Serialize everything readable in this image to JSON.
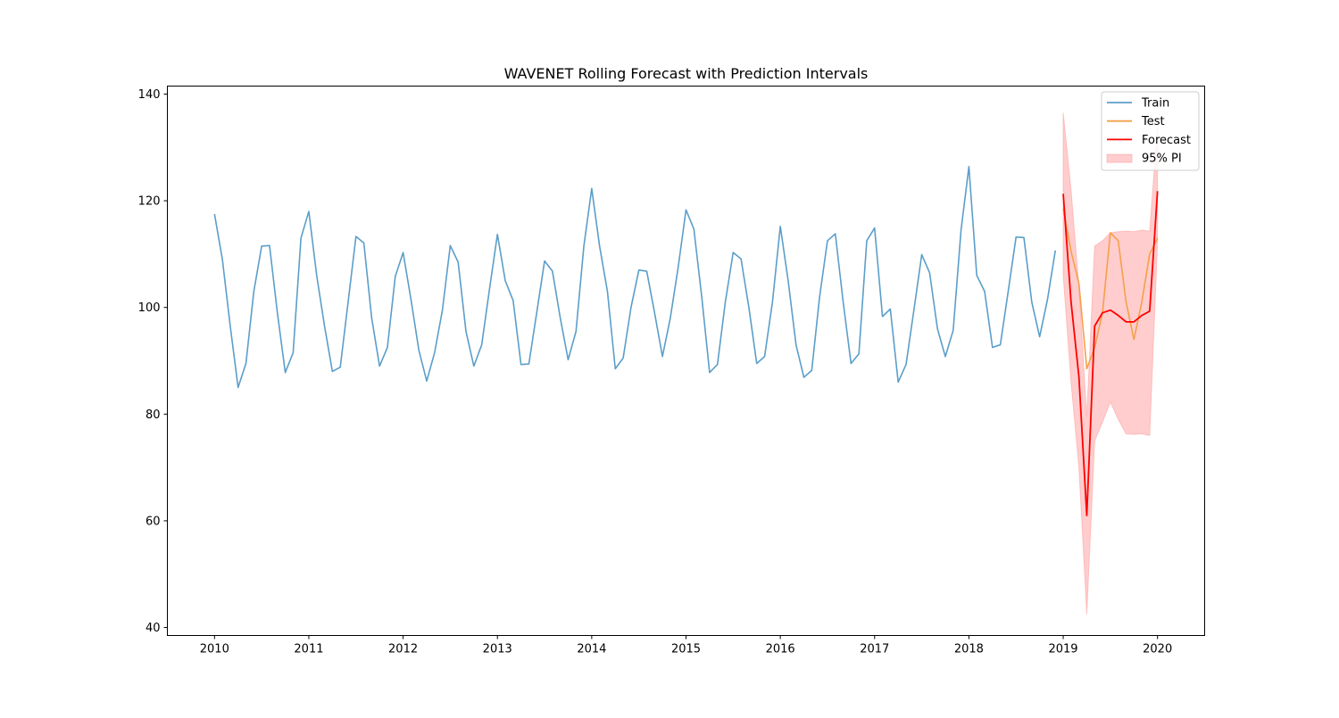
{
  "chart_data": {
    "type": "line",
    "title": "WAVENET Rolling Forecast with Prediction Intervals",
    "xlabel": "",
    "ylabel": "",
    "xlim": [
      2009.5,
      2020.5
    ],
    "ylim": [
      38.5,
      141.5
    ],
    "x_ticks": [
      2010,
      2011,
      2012,
      2013,
      2014,
      2015,
      2016,
      2017,
      2018,
      2019,
      2020
    ],
    "x_tick_labels": [
      "2010",
      "2011",
      "2012",
      "2013",
      "2014",
      "2015",
      "2016",
      "2017",
      "2018",
      "2019",
      "2020"
    ],
    "y_ticks": [
      40,
      60,
      80,
      100,
      120,
      140
    ],
    "y_tick_labels": [
      "40",
      "60",
      "80",
      "100",
      "120",
      "140"
    ],
    "grid": false,
    "legend_position": "top-right",
    "series": [
      {
        "name": "Train",
        "color": "#5b9ec9",
        "x_start": "2010-01",
        "frequency": "monthly",
        "values": [
          117.5,
          109.0,
          96.5,
          85.0,
          89.5,
          103.0,
          111.5,
          111.6,
          99.0,
          87.8,
          91.5,
          113.0,
          118.0,
          106.0,
          96.5,
          88.0,
          88.8,
          101.0,
          113.3,
          112.1,
          98.0,
          89.0,
          92.5,
          105.8,
          110.3,
          101.5,
          92.0,
          86.2,
          91.5,
          99.5,
          111.6,
          108.5,
          95.5,
          89.0,
          93.0,
          103.5,
          113.7,
          105.0,
          101.3,
          89.3,
          89.4,
          99.0,
          108.7,
          106.8,
          98.0,
          90.2,
          95.5,
          111.5,
          122.3,
          111.5,
          103.0,
          88.5,
          90.5,
          100.0,
          107.0,
          106.8,
          99.0,
          90.8,
          98.0,
          107.5,
          118.3,
          114.7,
          102.0,
          87.8,
          89.3,
          101.0,
          110.3,
          109.1,
          100.0,
          89.5,
          90.8,
          101.0,
          115.2,
          105.0,
          93.0,
          86.9,
          88.2,
          102.0,
          112.5,
          113.8,
          101.0,
          89.5,
          91.3,
          112.5,
          114.9,
          98.3,
          99.7,
          86.0,
          89.3,
          99.5,
          109.9,
          106.5,
          96.0,
          90.8,
          95.7,
          114.5,
          126.4,
          106.0,
          103.0,
          92.5,
          93.0,
          103.0,
          113.2,
          113.1,
          101.0,
          94.5,
          101.5,
          110.7
        ]
      },
      {
        "name": "Test",
        "color": "#f5a04a",
        "x_start": "2019-01",
        "frequency": "monthly",
        "values": [
          118.5,
          110.5,
          104.5,
          88.5,
          92.5,
          99.0,
          114.0,
          112.5,
          101.0,
          94.0,
          101.0,
          110.0,
          113.0
        ]
      },
      {
        "name": "Forecast",
        "color": "#ff0000",
        "x_start": "2019-01",
        "frequency": "monthly",
        "values": [
          121.3,
          101.0,
          87.0,
          61.0,
          96.5,
          99.0,
          99.5,
          98.5,
          97.3,
          97.3,
          98.5,
          99.3,
          121.8
        ]
      },
      {
        "name": "95% PI",
        "color": "#ff9c9c",
        "x_start": "2019-01",
        "frequency": "monthly",
        "lower": [
          106.0,
          86.0,
          70.0,
          42.5,
          75.0,
          78.5,
          82.3,
          79.0,
          76.3,
          76.2,
          76.3,
          76.0,
          112.0
        ],
        "upper": [
          136.5,
          122.0,
          104.0,
          79.5,
          111.5,
          112.5,
          114.0,
          114.2,
          114.3,
          114.2,
          114.5,
          114.3,
          134.0
        ]
      }
    ]
  }
}
